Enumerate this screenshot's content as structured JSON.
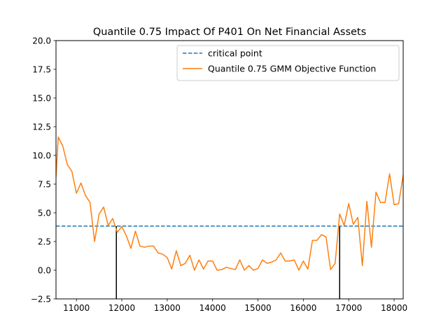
{
  "chart_data": {
    "type": "line",
    "title": "Quantile 0.75 Impact Of P401 On Net Financial Assets",
    "xlabel": "",
    "ylabel": "",
    "xlim": [
      10550,
      18200
    ],
    "ylim": [
      -2.5,
      20.0
    ],
    "x_ticks": [
      11000,
      12000,
      13000,
      14000,
      15000,
      16000,
      17000,
      18000
    ],
    "x_tick_labels": [
      "11000",
      "12000",
      "13000",
      "14000",
      "15000",
      "16000",
      "17000",
      "18000"
    ],
    "y_ticks": [
      -2.5,
      0.0,
      2.5,
      5.0,
      7.5,
      10.0,
      12.5,
      15.0,
      17.5,
      20.0
    ],
    "y_tick_labels": [
      "−2.5",
      "0.0",
      "2.5",
      "5.0",
      "7.5",
      "10.0",
      "12.5",
      "15.0",
      "17.5",
      "20.0"
    ],
    "grid": false,
    "legend_position": "top-right",
    "series": [
      {
        "name": "critical point",
        "style": "dashed",
        "color": "#1f77b4",
        "x": [
          10550,
          18200
        ],
        "y": [
          3.84,
          3.84
        ]
      },
      {
        "name": "Quantile 0.75 GMM Objective Function",
        "style": "solid",
        "color": "#ff7f0e",
        "x": [
          10550,
          10600,
          10700,
          10800,
          10900,
          11000,
          11100,
          11200,
          11300,
          11400,
          11500,
          11600,
          11700,
          11800,
          11900,
          12000,
          12100,
          12200,
          12300,
          12400,
          12500,
          12600,
          12700,
          12800,
          12900,
          13000,
          13100,
          13200,
          13300,
          13400,
          13500,
          13600,
          13700,
          13800,
          13900,
          14000,
          14100,
          14200,
          14300,
          14400,
          14500,
          14600,
          14700,
          14800,
          14900,
          15000,
          15100,
          15200,
          15300,
          15400,
          15500,
          15600,
          15700,
          15800,
          15900,
          16000,
          16100,
          16200,
          16300,
          16400,
          16500,
          16600,
          16700,
          16800,
          16900,
          17000,
          17100,
          17200,
          17300,
          17400,
          17500,
          17600,
          17700,
          17800,
          17900,
          18000,
          18100,
          18200
        ],
        "y": [
          8.1,
          11.6,
          10.8,
          9.2,
          8.6,
          6.7,
          7.6,
          6.5,
          5.9,
          2.5,
          4.9,
          5.5,
          3.9,
          4.5,
          3.3,
          3.8,
          3.0,
          1.9,
          3.4,
          2.1,
          2.0,
          2.1,
          2.1,
          1.5,
          1.4,
          1.1,
          0.1,
          1.7,
          0.4,
          0.6,
          1.3,
          0.0,
          0.9,
          0.1,
          0.8,
          0.8,
          0.0,
          0.05,
          0.25,
          0.15,
          0.05,
          0.9,
          0.0,
          0.4,
          0.0,
          0.15,
          0.9,
          0.6,
          0.7,
          0.9,
          1.5,
          0.8,
          0.8,
          0.9,
          0.0,
          0.8,
          0.1,
          2.6,
          2.6,
          3.1,
          2.9,
          0.05,
          0.6,
          4.9,
          3.9,
          5.8,
          4.0,
          4.6,
          0.4,
          6.0,
          2.0,
          6.8,
          5.9,
          5.9,
          8.4,
          5.7,
          5.8,
          8.3
        ]
      }
    ],
    "annotations": [
      {
        "type": "vertical-line",
        "x": 11880,
        "y0": -2.5,
        "y1": 3.84,
        "color": "#000000"
      },
      {
        "type": "vertical-line",
        "x": 16800,
        "y0": -2.5,
        "y1": 3.84,
        "color": "#000000"
      }
    ]
  }
}
